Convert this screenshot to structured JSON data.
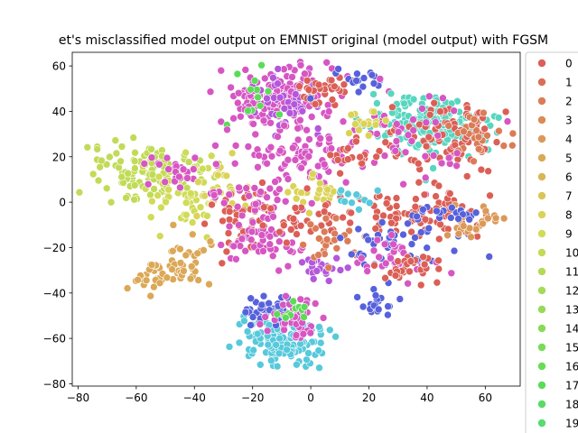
{
  "chart_data": {
    "type": "scatter",
    "title": "et's misclassified model output on EMNIST original (model output) with FGSM",
    "xlabel": "",
    "ylabel": "",
    "xlim": [
      -82,
      72
    ],
    "ylim": [
      -81,
      66
    ],
    "xticks": [
      "−80",
      "−60",
      "−40",
      "−20",
      "0",
      "20",
      "40",
      "60"
    ],
    "xtick_values": [
      -80,
      -60,
      -40,
      -20,
      0,
      20,
      40,
      60
    ],
    "yticks": [
      "−80",
      "−60",
      "−40",
      "−20",
      "0",
      "20",
      "40",
      "60"
    ],
    "ytick_values": [
      -80,
      -60,
      -40,
      -20,
      0,
      20,
      40,
      60
    ],
    "grid": false,
    "legend_position": "right, outside plot (cropped)",
    "legend": [
      {
        "label": "0",
        "color": "#db5f57"
      },
      {
        "label": "1",
        "color": "#db6e57"
      },
      {
        "label": "2",
        "color": "#db7c57"
      },
      {
        "label": "3",
        "color": "#db8b57"
      },
      {
        "label": "4",
        "color": "#db9957"
      },
      {
        "label": "5",
        "color": "#dba857"
      },
      {
        "label": "6",
        "color": "#dbb657"
      },
      {
        "label": "7",
        "color": "#dbc557"
      },
      {
        "label": "8",
        "color": "#dbd357"
      },
      {
        "label": "9",
        "color": "#d0db57"
      },
      {
        "label": "10",
        "color": "#c1db57"
      },
      {
        "label": "11",
        "color": "#b3db57"
      },
      {
        "label": "12",
        "color": "#a4db57"
      },
      {
        "label": "13",
        "color": "#96db57"
      },
      {
        "label": "14",
        "color": "#87db57"
      },
      {
        "label": "15",
        "color": "#79db57"
      },
      {
        "label": "16",
        "color": "#6adb57"
      },
      {
        "label": "17",
        "color": "#5cdb57"
      },
      {
        "label": "18",
        "color": "#57db66"
      },
      {
        "label": "19",
        "color": "#57db75"
      }
    ],
    "clusters": [
      {
        "color": "#d656c3",
        "cx": -12,
        "cy": 46,
        "sx": 10,
        "sy": 7,
        "n": 170
      },
      {
        "color": "#b457db",
        "cx": -8,
        "cy": 44,
        "sx": 6,
        "sy": 6,
        "n": 40
      },
      {
        "color": "#5cdb57",
        "cx": -18,
        "cy": 48,
        "sx": 4,
        "sy": 4,
        "n": 12
      },
      {
        "color": "#db5f57",
        "cx": 5,
        "cy": 50,
        "sx": 5,
        "sy": 3,
        "n": 35
      },
      {
        "color": "#5761db",
        "cx": 17,
        "cy": 53,
        "sx": 4,
        "sy": 3,
        "n": 18
      },
      {
        "color": "#57d6c0",
        "cx": 42,
        "cy": 34,
        "sx": 11,
        "sy": 6,
        "n": 190
      },
      {
        "color": "#db5f57",
        "cx": 45,
        "cy": 28,
        "sx": 12,
        "sy": 10,
        "n": 90
      },
      {
        "color": "#db7c57",
        "cx": 58,
        "cy": 30,
        "sx": 5,
        "sy": 6,
        "n": 25
      },
      {
        "color": "#d656c3",
        "cx": 35,
        "cy": 26,
        "sx": 12,
        "sy": 10,
        "n": 45
      },
      {
        "color": "#dbd357",
        "cx": 18,
        "cy": 36,
        "sx": 3,
        "sy": 3,
        "n": 15
      },
      {
        "color": "#c1db57",
        "cx": -58,
        "cy": 14,
        "sx": 10,
        "sy": 6,
        "n": 110
      },
      {
        "color": "#d0db57",
        "cx": -45,
        "cy": 6,
        "sx": 6,
        "sy": 8,
        "n": 60
      },
      {
        "color": "#d656c3",
        "cx": -46,
        "cy": 12,
        "sx": 5,
        "sy": 5,
        "n": 25
      },
      {
        "color": "#dbd357",
        "cx": -30,
        "cy": 6,
        "sx": 6,
        "sy": 6,
        "n": 25
      },
      {
        "color": "#db5f57",
        "cx": -23,
        "cy": -8,
        "sx": 6,
        "sy": 8,
        "n": 45
      },
      {
        "color": "#d656c3",
        "cx": -17,
        "cy": -15,
        "sx": 8,
        "sy": 7,
        "n": 60
      },
      {
        "color": "#dba857",
        "cx": -52,
        "cy": -33,
        "sx": 8,
        "sy": 3,
        "n": 40
      },
      {
        "color": "#dba857",
        "cx": -43,
        "cy": -22,
        "sx": 4,
        "sy": 5,
        "n": 25
      },
      {
        "color": "#d656c3",
        "cx": -15,
        "cy": 10,
        "sx": 10,
        "sy": 10,
        "n": 50
      },
      {
        "color": "#d656c3",
        "cx": -4,
        "cy": 22,
        "sx": 9,
        "sy": 6,
        "n": 60
      },
      {
        "color": "#dbd357",
        "cx": 2,
        "cy": 4,
        "sx": 4,
        "sy": 3,
        "n": 25
      },
      {
        "color": "#db5f57",
        "cx": -2,
        "cy": -8,
        "sx": 8,
        "sy": 6,
        "n": 35
      },
      {
        "color": "#b457db",
        "cx": 4,
        "cy": -28,
        "sx": 3,
        "sy": 3,
        "n": 25
      },
      {
        "color": "#db7c57",
        "cx": 7,
        "cy": -18,
        "sx": 5,
        "sy": 5,
        "n": 25
      },
      {
        "color": "#57c9db",
        "cx": -10,
        "cy": -60,
        "sx": 7,
        "sy": 6,
        "n": 150
      },
      {
        "color": "#5761db",
        "cx": -15,
        "cy": -48,
        "sx": 6,
        "sy": 3,
        "n": 35
      },
      {
        "color": "#d656c3",
        "cx": -5,
        "cy": -52,
        "sx": 6,
        "sy": 5,
        "n": 45
      },
      {
        "color": "#5cdb57",
        "cx": -6,
        "cy": -48,
        "sx": 3,
        "sy": 2,
        "n": 12
      },
      {
        "color": "#db5f57",
        "cx": 40,
        "cy": -5,
        "sx": 12,
        "sy": 5,
        "n": 80
      },
      {
        "color": "#5761db",
        "cx": 32,
        "cy": -18,
        "sx": 10,
        "sy": 6,
        "n": 45
      },
      {
        "color": "#d656c3",
        "cx": 30,
        "cy": -25,
        "sx": 7,
        "sy": 5,
        "n": 35
      },
      {
        "color": "#db5f57",
        "cx": 35,
        "cy": -30,
        "sx": 5,
        "sy": 3,
        "n": 30
      },
      {
        "color": "#db9957",
        "cx": 55,
        "cy": -8,
        "sx": 5,
        "sy": 4,
        "n": 25
      },
      {
        "color": "#5761db",
        "cx": 23,
        "cy": -45,
        "sx": 3,
        "sy": 2,
        "n": 20
      },
      {
        "color": "#57c9db",
        "cx": 15,
        "cy": 2,
        "sx": 4,
        "sy": 3,
        "n": 12
      },
      {
        "color": "#db5f57",
        "cx": 15,
        "cy": 20,
        "sx": 5,
        "sy": 3,
        "n": 20
      },
      {
        "color": "#5761db",
        "cx": 48,
        "cy": -5,
        "sx": 6,
        "sy": 2,
        "n": 20
      }
    ]
  }
}
